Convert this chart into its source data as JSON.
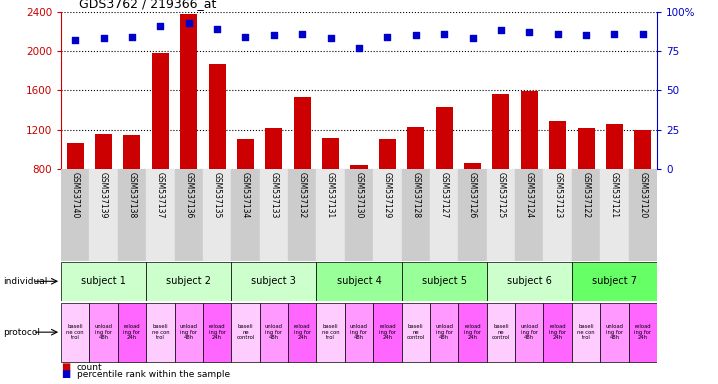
{
  "title": "GDS3762 / 219366_at",
  "samples": [
    "GSM537140",
    "GSM537139",
    "GSM537138",
    "GSM537137",
    "GSM537136",
    "GSM537135",
    "GSM537134",
    "GSM537133",
    "GSM537132",
    "GSM537131",
    "GSM537130",
    "GSM537129",
    "GSM537128",
    "GSM537127",
    "GSM537126",
    "GSM537125",
    "GSM537124",
    "GSM537123",
    "GSM537122",
    "GSM537121",
    "GSM537120"
  ],
  "counts": [
    1060,
    1160,
    1150,
    1980,
    2370,
    1870,
    1100,
    1220,
    1530,
    1110,
    840,
    1100,
    1230,
    1430,
    860,
    1560,
    1590,
    1290,
    1220,
    1260,
    1200
  ],
  "percentile_ranks": [
    82,
    83,
    84,
    91,
    93,
    89,
    84,
    85,
    86,
    83,
    77,
    84,
    85,
    86,
    83,
    88,
    87,
    86,
    85,
    86,
    86
  ],
  "ylim_left": [
    800,
    2400
  ],
  "ylim_right": [
    0,
    100
  ],
  "yticks_left": [
    800,
    1200,
    1600,
    2000,
    2400
  ],
  "yticks_right": [
    0,
    25,
    50,
    75,
    100
  ],
  "bar_color": "#cc0000",
  "dot_color": "#0000cc",
  "subjects": [
    {
      "label": "subject 1",
      "start": 0,
      "end": 3,
      "color": "#ccffcc"
    },
    {
      "label": "subject 2",
      "start": 3,
      "end": 6,
      "color": "#ccffcc"
    },
    {
      "label": "subject 3",
      "start": 6,
      "end": 9,
      "color": "#ccffcc"
    },
    {
      "label": "subject 4",
      "start": 9,
      "end": 12,
      "color": "#99ff99"
    },
    {
      "label": "subject 5",
      "start": 12,
      "end": 15,
      "color": "#99ff99"
    },
    {
      "label": "subject 6",
      "start": 15,
      "end": 18,
      "color": "#ccffcc"
    },
    {
      "label": "subject 7",
      "start": 18,
      "end": 21,
      "color": "#66ff66"
    }
  ],
  "protocols": [
    {
      "label": "baseli\nne con\ntrol",
      "color": "#ffccff"
    },
    {
      "label": "unload\ning for\n48h",
      "color": "#ff99ff"
    },
    {
      "label": "reload\ning for\n24h",
      "color": "#ff66ff"
    },
    {
      "label": "baseli\nne con\ntrol",
      "color": "#ffccff"
    },
    {
      "label": "unload\ning for\n48h",
      "color": "#ff99ff"
    },
    {
      "label": "reload\ning for\n24h",
      "color": "#ff66ff"
    },
    {
      "label": "baseli\nne\ncontrol",
      "color": "#ffccff"
    },
    {
      "label": "unload\ning for\n48h",
      "color": "#ff99ff"
    },
    {
      "label": "reload\ning for\n24h",
      "color": "#ff66ff"
    },
    {
      "label": "baseli\nne con\ntrol",
      "color": "#ffccff"
    },
    {
      "label": "unload\ning for\n48h",
      "color": "#ff99ff"
    },
    {
      "label": "reload\ning for\n24h",
      "color": "#ff66ff"
    },
    {
      "label": "baseli\nne\ncontrol",
      "color": "#ffccff"
    },
    {
      "label": "unload\ning for\n48h",
      "color": "#ff99ff"
    },
    {
      "label": "reload\ning for\n24h",
      "color": "#ff66ff"
    },
    {
      "label": "baseli\nne\ncontrol",
      "color": "#ffccff"
    },
    {
      "label": "unload\ning for\n48h",
      "color": "#ff99ff"
    },
    {
      "label": "reload\ning for\n24h",
      "color": "#ff66ff"
    },
    {
      "label": "baseli\nne con\ntrol",
      "color": "#ffccff"
    },
    {
      "label": "unload\ning for\n48h",
      "color": "#ff99ff"
    },
    {
      "label": "reload\ning for\n24h",
      "color": "#ff66ff"
    }
  ],
  "background_color": "#ffffff",
  "left_tick_color": "#cc0000",
  "right_tick_color": "#0000cc",
  "xtick_bg_even": "#cccccc",
  "xtick_bg_odd": "#e8e8e8",
  "subj_border_color": "#000000",
  "prot_border_color": "#000000"
}
